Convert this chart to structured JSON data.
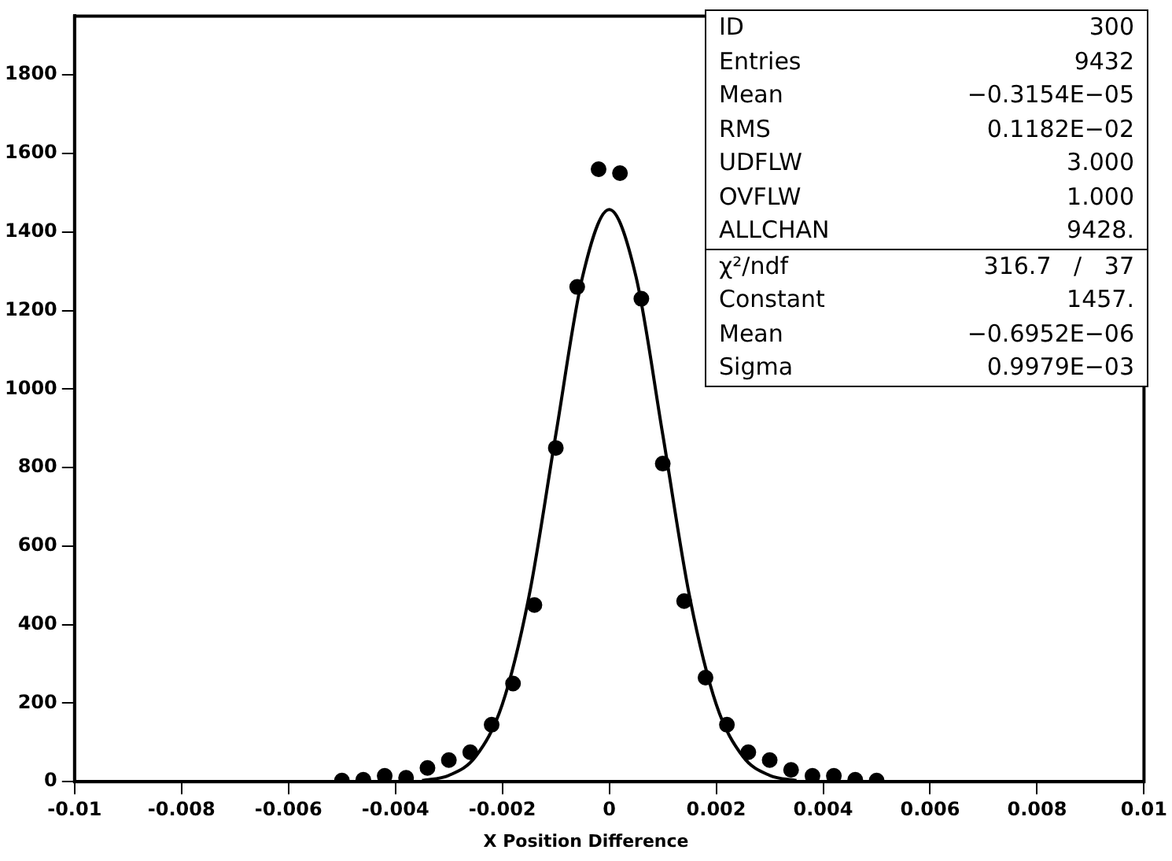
{
  "chart_data": {
    "type": "scatter",
    "xlabel": "X Position Difference",
    "x": [
      -0.005,
      -0.0046,
      -0.0042,
      -0.0038,
      -0.0034,
      -0.003,
      -0.0026,
      -0.0022,
      -0.0018,
      -0.0014,
      -0.001,
      -0.0006,
      -0.0002,
      0.0002,
      0.0006,
      0.001,
      0.0014,
      0.0018,
      0.0022,
      0.0026,
      0.003,
      0.0034,
      0.0038,
      0.0042,
      0.0046,
      0.005
    ],
    "values": [
      3,
      5,
      15,
      10,
      35,
      55,
      75,
      145,
      250,
      450,
      850,
      1260,
      1560,
      1550,
      1230,
      810,
      460,
      265,
      145,
      75,
      55,
      30,
      15,
      15,
      5,
      3
    ],
    "color": "#000000",
    "marker": "circle",
    "series": [
      {
        "type": "line",
        "color": "#000000",
        "marker": "none",
        "x": [
          -0.0035,
          -0.003,
          -0.0025,
          -0.002,
          -0.0015,
          -0.001,
          -0.0005,
          0,
          0.0005,
          0.001,
          0.0015,
          0.002,
          0.0025,
          0.003,
          0.0035
        ],
        "values": [
          3,
          16,
          64,
          197,
          473,
          884,
          1286,
          1457,
          1286,
          884,
          473,
          197,
          64,
          16,
          3
        ]
      }
    ],
    "xlim": [
      -0.01,
      0.01
    ],
    "xticks": [
      -0.01,
      -0.008,
      -0.006,
      -0.004,
      -0.002,
      0,
      0.002,
      0.004,
      0.006,
      0.008,
      0.01
    ],
    "ylim": [
      0,
      1950
    ],
    "yticks": [
      0,
      200,
      400,
      600,
      800,
      1000,
      1200,
      1400,
      1600,
      1800
    ],
    "grid": false,
    "legend": false,
    "annotations": [
      "ID",
      "300",
      "Entries",
      "9432",
      "Mean",
      "−0.3154E−05",
      "RMS",
      "0.1182E−02",
      "UDFLW",
      "3.000",
      "OVFLW",
      "1.000",
      "ALLCHAN",
      "9428.",
      "χ²/ndf",
      "316.7   /   37",
      "Constant",
      "1457.",
      "Mean",
      "−0.6952E−06",
      "Sigma",
      "0.9979E−03"
    ]
  }
}
